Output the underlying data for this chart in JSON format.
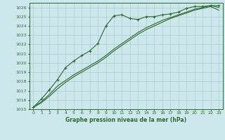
{
  "title": "Graphe pression niveau de la mer (hPa)",
  "bg_color": "#cce8ed",
  "grid_color": "#aacccc",
  "line_color": "#2d6a2d",
  "xlim": [
    -0.5,
    23.5
  ],
  "ylim": [
    1015,
    1026.5
  ],
  "yticks": [
    1015,
    1016,
    1017,
    1018,
    1019,
    1020,
    1021,
    1022,
    1023,
    1024,
    1025,
    1026
  ],
  "xticks": [
    0,
    1,
    2,
    3,
    4,
    5,
    6,
    7,
    8,
    9,
    10,
    11,
    12,
    13,
    14,
    15,
    16,
    17,
    18,
    19,
    20,
    21,
    22,
    23
  ],
  "line1_x": [
    0,
    1,
    2,
    3,
    4,
    5,
    6,
    7,
    8,
    9,
    10,
    11,
    12,
    13,
    14,
    15,
    16,
    17,
    18,
    19,
    20,
    21,
    22,
    23
  ],
  "line1_y": [
    1015.2,
    1016.1,
    1017.1,
    1018.2,
    1019.5,
    1020.2,
    1020.8,
    1021.3,
    1022.1,
    1024.0,
    1025.1,
    1025.2,
    1024.8,
    1024.7,
    1025.0,
    1025.0,
    1025.2,
    1025.3,
    1025.5,
    1025.9,
    1026.1,
    1026.1,
    1026.2,
    1026.2
  ],
  "line2_x": [
    0,
    1,
    2,
    3,
    4,
    5,
    6,
    7,
    8,
    9,
    10,
    11,
    12,
    13,
    14,
    15,
    16,
    17,
    18,
    19,
    20,
    21,
    22,
    23
  ],
  "line2_y": [
    1015.2,
    1015.7,
    1016.4,
    1017.2,
    1017.9,
    1018.5,
    1019.0,
    1019.5,
    1020.0,
    1020.6,
    1021.3,
    1021.9,
    1022.5,
    1023.1,
    1023.6,
    1024.0,
    1024.4,
    1024.8,
    1025.1,
    1025.4,
    1025.7,
    1025.9,
    1026.1,
    1025.7
  ],
  "line3_x": [
    0,
    1,
    2,
    3,
    4,
    5,
    6,
    7,
    8,
    9,
    10,
    11,
    12,
    13,
    14,
    15,
    16,
    17,
    18,
    19,
    20,
    21,
    22,
    23
  ],
  "line3_y": [
    1015.2,
    1015.8,
    1016.6,
    1017.5,
    1018.1,
    1018.7,
    1019.2,
    1019.7,
    1020.2,
    1020.8,
    1021.5,
    1022.1,
    1022.7,
    1023.3,
    1023.8,
    1024.2,
    1024.6,
    1024.9,
    1025.2,
    1025.5,
    1025.8,
    1026.0,
    1026.2,
    1026.0
  ]
}
